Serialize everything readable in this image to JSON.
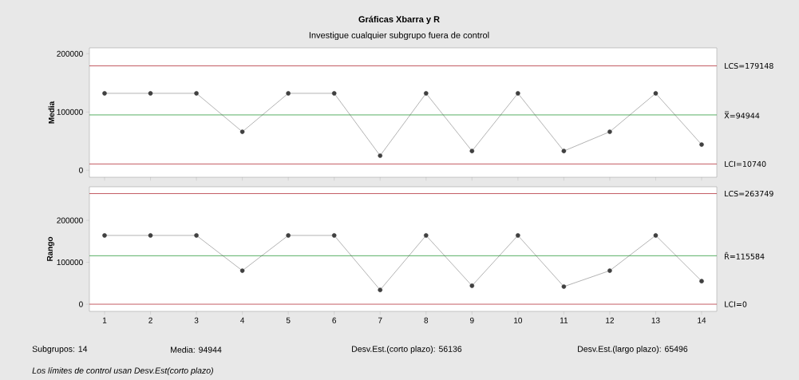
{
  "chart_data": [
    {
      "type": "line",
      "title": "Gráficas Xbarra y R",
      "subtitle": "Investigue cualquier subgrupo fuera de control",
      "ylabel": "Media",
      "x": [
        1,
        2,
        3,
        4,
        5,
        6,
        7,
        8,
        9,
        10,
        11,
        12,
        13,
        14
      ],
      "series": [
        {
          "color": "#404040",
          "values": [
            132000,
            132000,
            132000,
            66000,
            132000,
            132000,
            25000,
            132000,
            33000,
            132000,
            33000,
            66000,
            132000,
            44000
          ]
        }
      ],
      "marker": "circle",
      "xlim": [
        0.67,
        14.33
      ],
      "xticks": [
        1,
        2,
        3,
        4,
        5,
        6,
        7,
        8,
        9,
        10,
        11,
        12,
        13,
        14
      ],
      "ylim": [
        -12000,
        210000
      ],
      "yticks": [
        0,
        100000,
        200000
      ],
      "tick_labels": "y",
      "ref_lines": [
        {
          "axis": "y",
          "value": 179148,
          "label": "LCS=179148",
          "color": "#b5343c"
        },
        {
          "axis": "y",
          "value": 94944,
          "label": "X̿=94944",
          "color": "#2e9a3e"
        },
        {
          "axis": "y",
          "value": 10740,
          "label": "LCI=10740",
          "color": "#b5343c"
        }
      ]
    },
    {
      "type": "line",
      "ylabel": "Rango",
      "x": [
        1,
        2,
        3,
        4,
        5,
        6,
        7,
        8,
        9,
        10,
        11,
        12,
        13,
        14
      ],
      "series": [
        {
          "color": "#404040",
          "values": [
            164000,
            164000,
            164000,
            80000,
            164000,
            164000,
            34000,
            164000,
            44000,
            164000,
            42000,
            80000,
            164000,
            55000
          ]
        }
      ],
      "marker": "circle",
      "xlim": [
        0.67,
        14.33
      ],
      "xticks": [
        1,
        2,
        3,
        4,
        5,
        6,
        7,
        8,
        9,
        10,
        11,
        12,
        13,
        14
      ],
      "ylim": [
        -17000,
        280000
      ],
      "yticks": [
        0,
        100000,
        200000
      ],
      "ref_lines": [
        {
          "axis": "y",
          "value": 263749,
          "label": "LCS=263749",
          "color": "#b5343c"
        },
        {
          "axis": "y",
          "value": 115584,
          "label": "R̄=115584",
          "color": "#2e9a3e"
        },
        {
          "axis": "y",
          "value": 0,
          "label": "LCI=0",
          "color": "#b5343c"
        }
      ],
      "annotations": [
        "Subgrupos: 14",
        "Media: 94944",
        "Desv.Est.(corto plazo): 56136",
        "Desv.Est.(largo plazo): 65496",
        "Los límites de control usan Desv.Est(corto plazo)"
      ]
    }
  ]
}
